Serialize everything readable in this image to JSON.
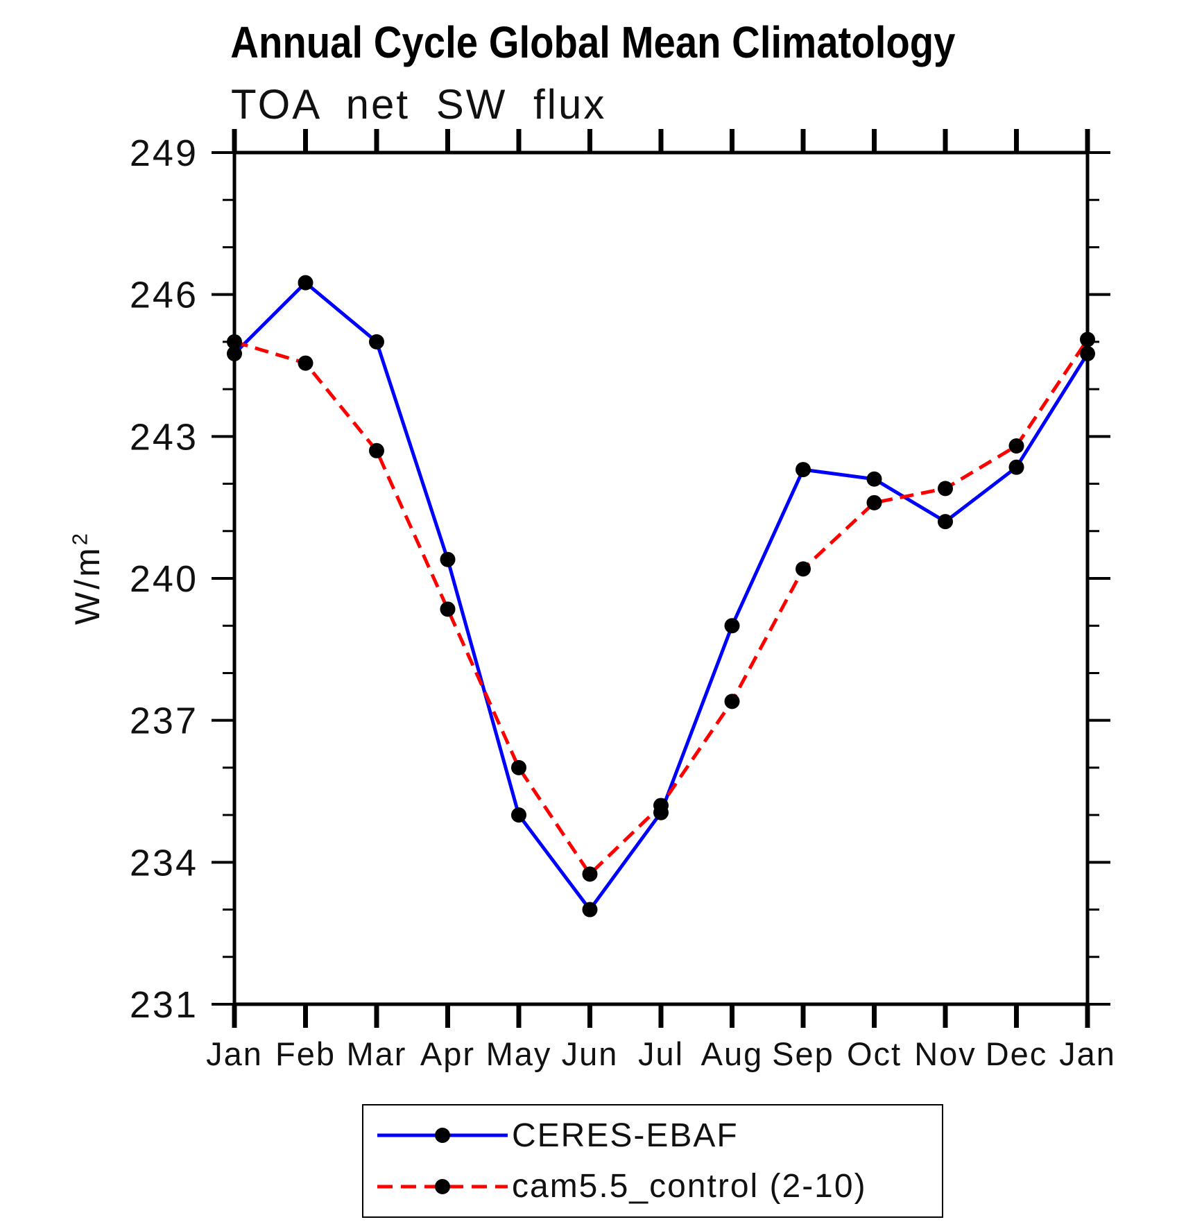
{
  "title": "Annual Cycle Global Mean Climatology",
  "chart_data": {
    "type": "line",
    "title": "Annual Cycle Global Mean Climatology",
    "subtitle": "TOA net SW flux",
    "ylabel_base": "W/m",
    "ylabel_sup": "2",
    "categories": [
      "Jan",
      "Feb",
      "Mar",
      "Apr",
      "May",
      "Jun",
      "Jul",
      "Aug",
      "Sep",
      "Oct",
      "Nov",
      "Dec",
      "Jan"
    ],
    "ylim": [
      231,
      249
    ],
    "y_major_ticks": [
      231,
      234,
      237,
      240,
      243,
      246,
      249
    ],
    "y_minor_step": 1,
    "grid": false,
    "legend_position": "bottom-center",
    "axis_color": "#000000",
    "marker_color": "#000000",
    "series": [
      {
        "name": "CERES-EBAF",
        "color": "#0000ff",
        "line_style": "solid",
        "values": [
          244.75,
          246.25,
          245.0,
          240.4,
          235.0,
          233.0,
          235.05,
          239.0,
          242.3,
          242.1,
          241.2,
          242.35,
          244.75
        ]
      },
      {
        "name": "cam5.5_control (2-10)",
        "color": "#ff0000",
        "line_style": "dashed",
        "values": [
          245.0,
          244.55,
          242.7,
          239.35,
          236.0,
          233.75,
          235.2,
          237.4,
          240.2,
          241.6,
          241.9,
          242.8,
          245.05
        ]
      }
    ]
  }
}
